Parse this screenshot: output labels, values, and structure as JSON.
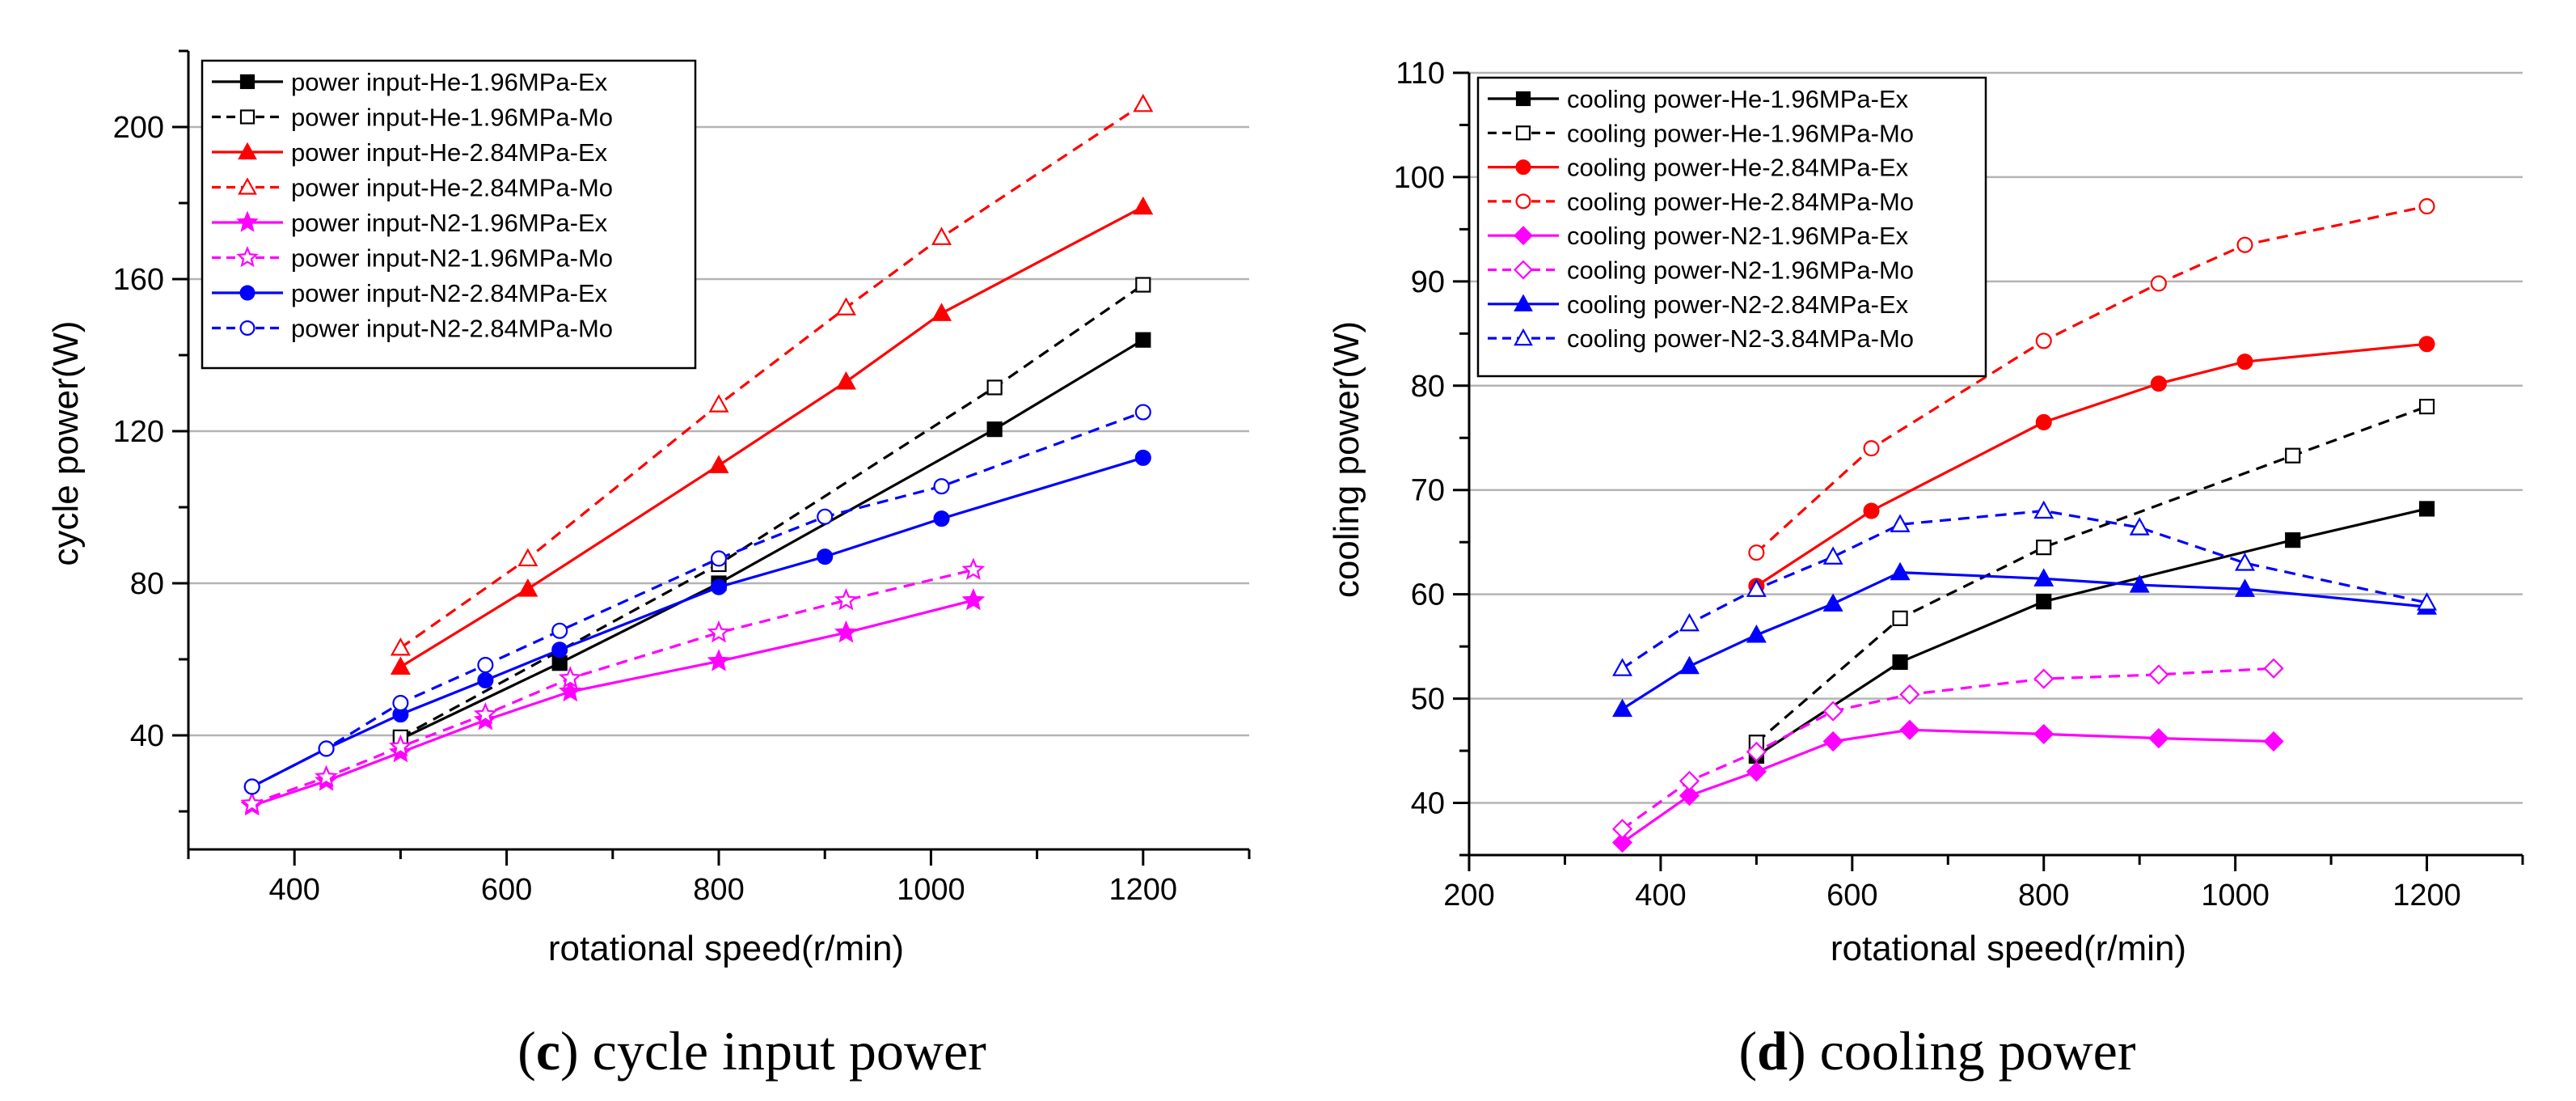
{
  "chart_data": [
    {
      "type": "line",
      "caption": {
        "letter": "c",
        "prefix": "(",
        "suffix": ")",
        "text": " cycle input power"
      },
      "xlabel": "rotational speed(r/min)",
      "ylabel": "cycle power(W)",
      "xlim": [
        300,
        1300
      ],
      "ylim": [
        10,
        220
      ],
      "xticks": [
        400,
        600,
        800,
        1000,
        1200
      ],
      "yticks": [
        40,
        80,
        120,
        160,
        200
      ],
      "grid": "horizontal",
      "legend_position": "top-left",
      "series": [
        {
          "name": "power input-He-1.96MPa-Ex",
          "color": "#000000",
          "dash": "solid",
          "marker": "square",
          "filled": true,
          "x": [
            500,
            650,
            800,
            1060,
            1200
          ],
          "y": [
            39,
            59,
            80,
            120.5,
            144
          ]
        },
        {
          "name": "power input-He-1.96MPa-Mo",
          "color": "#000000",
          "dash": "dashed",
          "marker": "square",
          "filled": false,
          "x": [
            500,
            800,
            1060,
            1200
          ],
          "y": [
            39.5,
            85,
            131.5,
            158.5
          ]
        },
        {
          "name": "power input-He-2.84MPa-Ex",
          "color": "#ff0000",
          "dash": "solid",
          "marker": "triangle",
          "filled": true,
          "x": [
            500,
            620,
            800,
            920,
            1010,
            1200
          ],
          "y": [
            58,
            78.5,
            111,
            133,
            151,
            179
          ]
        },
        {
          "name": "power input-He-2.84MPa-Mo",
          "color": "#ff0000",
          "dash": "dashed",
          "marker": "triangle",
          "filled": false,
          "x": [
            500,
            620,
            800,
            920,
            1010,
            1200
          ],
          "y": [
            63,
            86.5,
            127,
            152.5,
            171,
            206
          ]
        },
        {
          "name": "power input-N2-1.96MPa-Ex",
          "color": "#ff00ff",
          "dash": "solid",
          "marker": "star",
          "filled": true,
          "x": [
            360,
            430,
            500,
            580,
            660,
            800,
            920,
            1040
          ],
          "y": [
            21.5,
            28,
            35.5,
            44,
            51.5,
            59.5,
            67,
            75.5
          ]
        },
        {
          "name": "power input-N2-1.96MPa-Mo",
          "color": "#ff00ff",
          "dash": "dashed",
          "marker": "star",
          "filled": false,
          "x": [
            360,
            430,
            500,
            580,
            660,
            800,
            920,
            1040
          ],
          "y": [
            22,
            29,
            37,
            45.5,
            55,
            67,
            75.5,
            83.5
          ]
        },
        {
          "name": "power input-N2-2.84MPa-Ex",
          "color": "#0000ff",
          "dash": "solid",
          "marker": "circle",
          "filled": true,
          "x": [
            360,
            430,
            500,
            580,
            650,
            800,
            900,
            1010,
            1200
          ],
          "y": [
            26.5,
            36.5,
            45.5,
            54.5,
            62.5,
            79,
            87,
            97,
            113
          ]
        },
        {
          "name": "power input-N2-2.84MPa-Mo",
          "color": "#0000ff",
          "dash": "dashed",
          "marker": "circle",
          "filled": false,
          "x": [
            360,
            430,
            500,
            580,
            650,
            800,
            900,
            1010,
            1200
          ],
          "y": [
            26.5,
            36.5,
            48.5,
            58.5,
            67.5,
            86.5,
            97.5,
            105.5,
            125
          ]
        }
      ]
    },
    {
      "type": "line",
      "caption": {
        "letter": "d",
        "prefix": "(",
        "suffix": ")",
        "text": " cooling power"
      },
      "xlabel": "rotational speed(r/min)",
      "ylabel": "cooling power(W)",
      "xlim": [
        200,
        1300
      ],
      "ylim": [
        35,
        110
      ],
      "xticks": [
        200,
        400,
        600,
        800,
        1000,
        1200
      ],
      "yticks": [
        40,
        50,
        60,
        70,
        80,
        90,
        100,
        110
      ],
      "grid": "horizontal",
      "legend_position": "top-left",
      "series": [
        {
          "name": "cooling power-He-1.96MPa-Ex",
          "color": "#000000",
          "dash": "solid",
          "marker": "square",
          "filled": true,
          "x": [
            500,
            650,
            800,
            1060,
            1200
          ],
          "y": [
            44.5,
            53.5,
            59.3,
            65.2,
            68.2
          ]
        },
        {
          "name": "cooling power-He-1.96MPa-Mo",
          "color": "#000000",
          "dash": "dashed",
          "marker": "square",
          "filled": false,
          "x": [
            500,
            650,
            800,
            1060,
            1200
          ],
          "y": [
            45.8,
            57.7,
            64.5,
            73.3,
            78
          ]
        },
        {
          "name": "cooling power-He-2.84MPa-Ex",
          "color": "#ff0000",
          "dash": "solid",
          "marker": "circle",
          "filled": true,
          "x": [
            500,
            620,
            800,
            920,
            1010,
            1200
          ],
          "y": [
            60.8,
            68,
            76.5,
            80.2,
            82.3,
            84
          ]
        },
        {
          "name": "cooling power-He-2.84MPa-Mo",
          "color": "#ff0000",
          "dash": "dashed",
          "marker": "circle",
          "filled": false,
          "x": [
            500,
            620,
            800,
            920,
            1010,
            1200
          ],
          "y": [
            64,
            74,
            84.3,
            89.8,
            93.5,
            97.2
          ]
        },
        {
          "name": "cooling power-N2-1.96MPa-Ex",
          "color": "#ff00ff",
          "dash": "solid",
          "marker": "diamond",
          "filled": true,
          "x": [
            360,
            430,
            500,
            580,
            660,
            800,
            920,
            1040
          ],
          "y": [
            36.2,
            40.7,
            43,
            45.9,
            47,
            46.6,
            46.2,
            45.9
          ]
        },
        {
          "name": "cooling power-N2-1.96MPa-Mo",
          "color": "#ff00ff",
          "dash": "dashed",
          "marker": "diamond",
          "filled": false,
          "x": [
            360,
            430,
            500,
            580,
            660,
            800,
            920,
            1040
          ],
          "y": [
            37.5,
            42.1,
            44.9,
            48.8,
            50.4,
            51.9,
            52.3,
            52.9
          ]
        },
        {
          "name": "cooling power-N2-2.84MPa-Ex",
          "color": "#0000ff",
          "dash": "solid",
          "marker": "triangle",
          "filled": true,
          "x": [
            360,
            430,
            500,
            580,
            650,
            800,
            900,
            1010,
            1200
          ],
          "y": [
            49,
            53.1,
            56.1,
            59.1,
            62.1,
            61.5,
            60.9,
            60.5,
            58.8
          ]
        },
        {
          "name": "cooling power-N2-3.84MPa-Mo",
          "color": "#0000ff",
          "dash": "dashed",
          "marker": "triangle",
          "filled": false,
          "x": [
            360,
            430,
            500,
            580,
            650,
            800,
            900,
            1010,
            1200
          ],
          "y": [
            52.9,
            57.2,
            60.5,
            63.6,
            66.7,
            68,
            66.4,
            63,
            59.2
          ]
        }
      ]
    }
  ]
}
